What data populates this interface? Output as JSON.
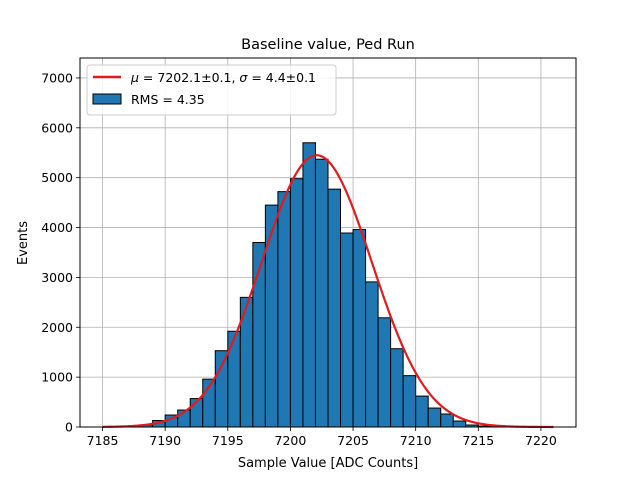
{
  "chart_data": {
    "type": "bar",
    "title": "Baseline value, Ped Run",
    "xlabel": "Sample Value [ADC Counts]",
    "ylabel": "Events",
    "xlim": [
      7183.2,
      7222.8
    ],
    "ylim": [
      0,
      7400
    ],
    "xticks": [
      7185,
      7190,
      7195,
      7200,
      7205,
      7210,
      7215,
      7220
    ],
    "yticks": [
      0,
      1000,
      2000,
      3000,
      4000,
      5000,
      6000,
      7000
    ],
    "grid": true,
    "legend_position": "top-left",
    "histogram": {
      "label": "RMS = 4.35",
      "color": "#1f77b4",
      "bin_width": 1,
      "bin_starts": [
        7188,
        7189,
        7190,
        7191,
        7192,
        7193,
        7194,
        7195,
        7196,
        7197,
        7198,
        7199,
        7200,
        7201,
        7202,
        7203,
        7204,
        7205,
        7206,
        7207,
        7208,
        7209,
        7210,
        7211,
        7212,
        7213,
        7214,
        7215,
        7216
      ],
      "counts": [
        40,
        130,
        240,
        340,
        570,
        960,
        1530,
        1920,
        2600,
        3700,
        4450,
        4720,
        4980,
        5700,
        5370,
        4770,
        3890,
        3960,
        2910,
        2190,
        1570,
        1030,
        620,
        380,
        260,
        120,
        40,
        20,
        10
      ]
    },
    "fit": {
      "label_mu": "7202.1±0.1",
      "label_sigma": "4.4±0.1",
      "color": "#e41a1c",
      "mu": 7202.1,
      "sigma": 4.4,
      "amplitude": 5450,
      "x_range": [
        7185,
        7221
      ]
    }
  }
}
